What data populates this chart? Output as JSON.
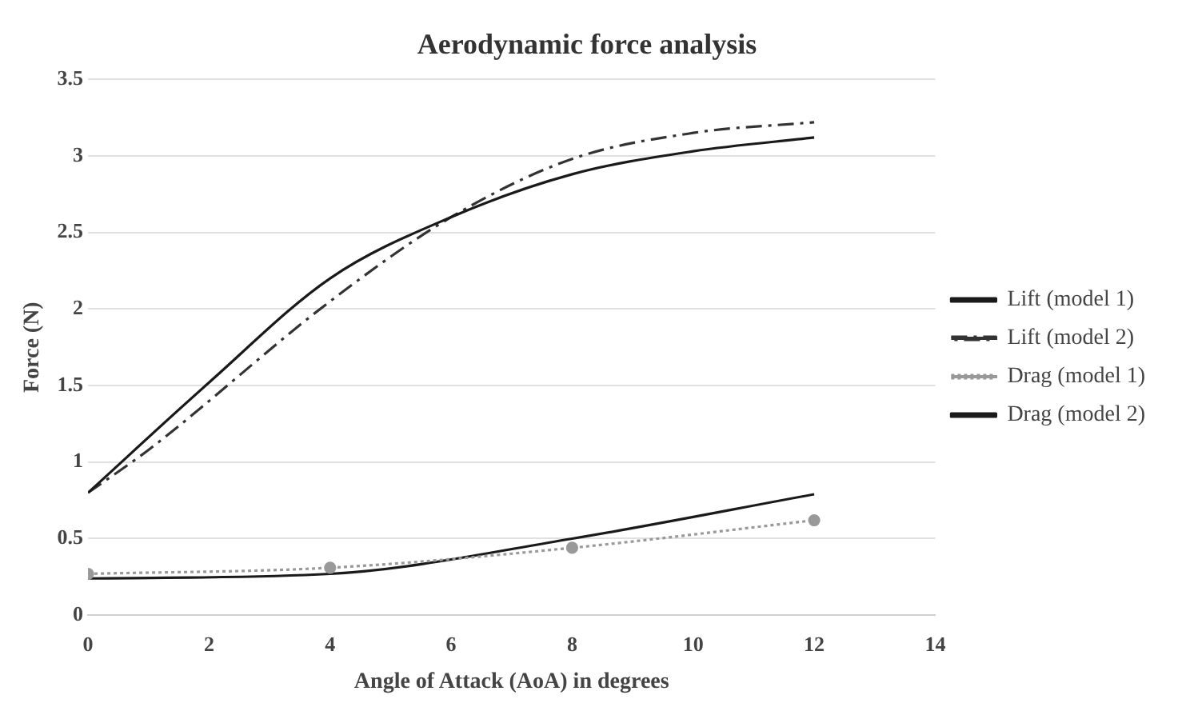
{
  "chart_data": {
    "type": "line",
    "title": "Aerodynamic force analysis",
    "xlabel": "Angle of Attack (AoA) in degrees",
    "ylabel": "Force (N)",
    "xlim": [
      0,
      14
    ],
    "xticks": [
      0,
      2,
      4,
      6,
      8,
      10,
      12,
      14
    ],
    "ylim": [
      0,
      3.5
    ],
    "yticks": [
      0,
      0.5,
      1,
      1.5,
      2,
      2.5,
      3,
      3.5
    ],
    "grid": "y",
    "legend": "right",
    "series": [
      {
        "name": "Lift (model 1)",
        "color": "#1a1a1a",
        "line_style": "solid",
        "marker": "none",
        "x": [
          0,
          2,
          4,
          6,
          8,
          10,
          12
        ],
        "values": [
          0.8,
          1.52,
          2.2,
          2.6,
          2.88,
          3.03,
          3.12
        ]
      },
      {
        "name": "Lift (model 2)",
        "color": "#333333",
        "line_style": "dashed",
        "marker": "none",
        "x": [
          0,
          1,
          4,
          6,
          8,
          10,
          12
        ],
        "values": [
          0.8,
          1.08,
          2.05,
          2.6,
          2.98,
          3.15,
          3.22
        ]
      },
      {
        "name": "Drag (model 1)",
        "color": "#999999",
        "line_style": "dotted",
        "marker": "circle",
        "x": [
          0,
          4,
          8,
          12
        ],
        "values": [
          0.27,
          0.31,
          0.44,
          0.62
        ]
      },
      {
        "name": "Drag (model 2)",
        "color": "#1a1a1a",
        "line_style": "solid",
        "marker": "none",
        "x": [
          0,
          4,
          8,
          12
        ],
        "values": [
          0.24,
          0.27,
          0.5,
          0.79
        ]
      }
    ]
  }
}
